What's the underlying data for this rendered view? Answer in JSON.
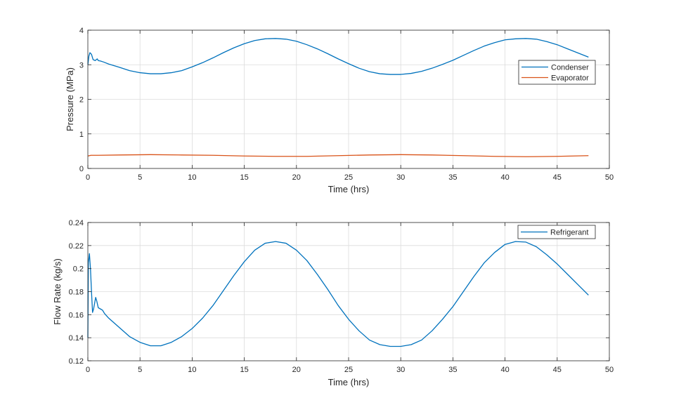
{
  "chart_data": [
    {
      "type": "line",
      "xlabel": "Time (hrs)",
      "ylabel": "Pressure (MPa)",
      "xlim": [
        0,
        50
      ],
      "ylim": [
        0,
        4
      ],
      "xticks": [
        0,
        5,
        10,
        15,
        20,
        25,
        30,
        35,
        40,
        45,
        50
      ],
      "xtick_labels": [
        "0",
        "5",
        "10",
        "15",
        "20",
        "25",
        "30",
        "35",
        "40",
        "45",
        "50"
      ],
      "yticks": [
        0,
        1,
        2,
        3,
        4
      ],
      "ytick_labels": [
        "0",
        "1",
        "2",
        "3",
        "4"
      ],
      "grid": true,
      "legend_position": "upper-right",
      "series": [
        {
          "name": "Condenser",
          "color": "#0072bd",
          "x": [
            0,
            0.1,
            0.2,
            0.35,
            0.5,
            0.7,
            0.9,
            1.0,
            1.2,
            1.5,
            2,
            3,
            4,
            5,
            6,
            7,
            8,
            9,
            10,
            11,
            12,
            13,
            14,
            15,
            16,
            17,
            18,
            19,
            20,
            21,
            22,
            23,
            24,
            25,
            26,
            27,
            28,
            29,
            30,
            31,
            32,
            33,
            34,
            35,
            36,
            37,
            38,
            39,
            40,
            41,
            42,
            43,
            44,
            45,
            46,
            47,
            48
          ],
          "y": [
            3.0,
            3.25,
            3.35,
            3.3,
            3.15,
            3.12,
            3.17,
            3.12,
            3.11,
            3.08,
            3.02,
            2.93,
            2.83,
            2.77,
            2.74,
            2.74,
            2.77,
            2.83,
            2.94,
            3.06,
            3.2,
            3.35,
            3.49,
            3.61,
            3.7,
            3.75,
            3.76,
            3.74,
            3.68,
            3.58,
            3.46,
            3.32,
            3.17,
            3.03,
            2.9,
            2.8,
            2.74,
            2.72,
            2.72,
            2.75,
            2.81,
            2.9,
            3.01,
            3.13,
            3.27,
            3.41,
            3.54,
            3.64,
            3.72,
            3.75,
            3.76,
            3.74,
            3.67,
            3.58,
            3.46,
            3.34,
            3.22
          ]
        },
        {
          "name": "Evaporator",
          "color": "#d95319",
          "x": [
            0,
            0.3,
            1,
            3,
            6,
            9,
            12,
            15,
            18,
            21,
            24,
            27,
            30,
            33,
            36,
            39,
            42,
            45,
            48
          ],
          "y": [
            0.36,
            0.38,
            0.38,
            0.39,
            0.4,
            0.39,
            0.38,
            0.36,
            0.35,
            0.35,
            0.37,
            0.39,
            0.4,
            0.39,
            0.37,
            0.35,
            0.34,
            0.35,
            0.37
          ]
        }
      ]
    },
    {
      "type": "line",
      "xlabel": "Time (hrs)",
      "ylabel": "Flow Rate (kg/s)",
      "xlim": [
        0,
        50
      ],
      "ylim": [
        0.12,
        0.24
      ],
      "xticks": [
        0,
        5,
        10,
        15,
        20,
        25,
        30,
        35,
        40,
        45,
        50
      ],
      "xtick_labels": [
        "0",
        "5",
        "10",
        "15",
        "20",
        "25",
        "30",
        "35",
        "40",
        "45",
        "50"
      ],
      "yticks": [
        0.12,
        0.14,
        0.16,
        0.18,
        0.2,
        0.22,
        0.24
      ],
      "ytick_labels": [
        "0.12",
        "0.14",
        "0.16",
        "0.18",
        "0.2",
        "0.22",
        "0.24"
      ],
      "grid": true,
      "legend_position": "upper-right",
      "series": [
        {
          "name": "Refrigerant",
          "color": "#0072bd",
          "x": [
            0,
            0.05,
            0.15,
            0.25,
            0.35,
            0.45,
            0.55,
            0.65,
            0.75,
            0.85,
            1.0,
            1.2,
            1.4,
            1.6,
            2,
            3,
            4,
            5,
            6,
            7,
            8,
            9,
            10,
            11,
            12,
            13,
            14,
            15,
            16,
            17,
            18,
            19,
            20,
            21,
            22,
            23,
            24,
            25,
            26,
            27,
            28,
            29,
            30,
            31,
            32,
            33,
            34,
            35,
            36,
            37,
            38,
            39,
            40,
            41,
            42,
            43,
            44,
            45,
            46,
            47,
            48
          ],
          "y": [
            0.14,
            0.205,
            0.213,
            0.2,
            0.18,
            0.162,
            0.165,
            0.17,
            0.175,
            0.172,
            0.166,
            0.165,
            0.164,
            0.161,
            0.157,
            0.149,
            0.141,
            0.136,
            0.133,
            0.133,
            0.136,
            0.141,
            0.148,
            0.157,
            0.168,
            0.181,
            0.194,
            0.206,
            0.216,
            0.222,
            0.2235,
            0.222,
            0.216,
            0.207,
            0.195,
            0.182,
            0.168,
            0.156,
            0.146,
            0.138,
            0.134,
            0.1325,
            0.1325,
            0.134,
            0.138,
            0.146,
            0.156,
            0.167,
            0.18,
            0.193,
            0.205,
            0.214,
            0.221,
            0.2235,
            0.223,
            0.219,
            0.212,
            0.204,
            0.195,
            0.186,
            0.177
          ]
        }
      ]
    }
  ]
}
